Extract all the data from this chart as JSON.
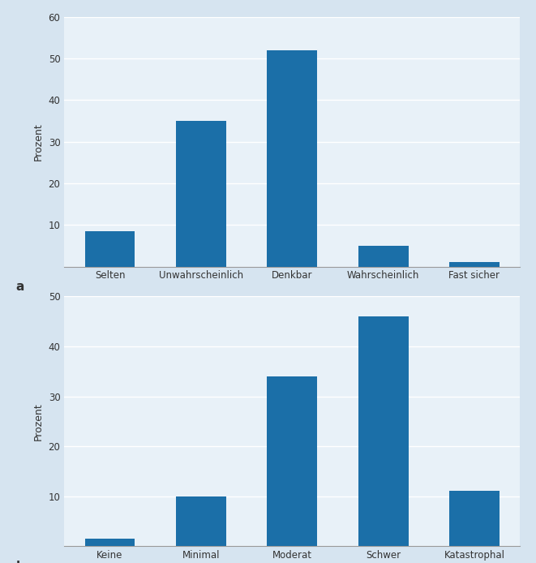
{
  "chart_a": {
    "categories": [
      "Selten",
      "Unwahrscheinlich",
      "Denkbar",
      "Wahrscheinlich",
      "Fast sicher"
    ],
    "values": [
      8.5,
      35.0,
      52.0,
      5.0,
      1.0
    ],
    "ylabel": "Prozent",
    "label": "a",
    "ylim": [
      0,
      60
    ],
    "yticks": [
      0,
      10,
      20,
      30,
      40,
      50,
      60
    ]
  },
  "chart_b": {
    "categories": [
      "Keine",
      "Minimal",
      "Moderat",
      "Schwer",
      "Katastrophal"
    ],
    "values": [
      1.5,
      10.0,
      34.0,
      46.0,
      11.0
    ],
    "ylabel": "Prozent",
    "label": "b",
    "ylim": [
      0,
      50
    ],
    "yticks": [
      0,
      10,
      20,
      30,
      40,
      50
    ]
  },
  "bar_color": "#1B6FA8",
  "background_color": "#D6E4F0",
  "axes_background_color": "#E8F1F8",
  "grid_color": "#C8D8E8",
  "label_fontsize": 11,
  "tick_fontsize": 8.5,
  "ylabel_fontsize": 9,
  "bar_width": 0.55
}
